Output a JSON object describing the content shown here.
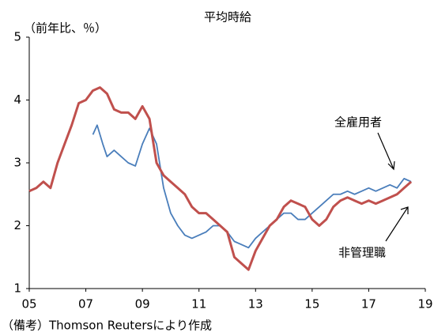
{
  "chart_data": {
    "type": "line",
    "title": "平均時給",
    "ylabel": "（前年比、％）",
    "note": "（備考）Thomson Reutersにより作成",
    "xlim": [
      2005,
      2019
    ],
    "xticks": [
      {
        "value": 2005,
        "label": "05"
      },
      {
        "value": 2007,
        "label": "07"
      },
      {
        "value": 2009,
        "label": "09"
      },
      {
        "value": 2011,
        "label": "11"
      },
      {
        "value": 2013,
        "label": "13"
      },
      {
        "value": 2015,
        "label": "15"
      },
      {
        "value": 2017,
        "label": "17"
      },
      {
        "value": 2019,
        "label": "19"
      }
    ],
    "ylim": [
      1,
      5
    ],
    "yticks": [
      1,
      2,
      3,
      4,
      5
    ],
    "grid": false,
    "series": [
      {
        "name": "全雇用者",
        "color": "#4a7ebb",
        "x": [
          2007.25,
          2007.4,
          2007.6,
          2007.75,
          2008.0,
          2008.25,
          2008.5,
          2008.75,
          2009.0,
          2009.25,
          2009.5,
          2009.75,
          2010.0,
          2010.25,
          2010.5,
          2010.75,
          2011.0,
          2011.25,
          2011.5,
          2011.75,
          2012.0,
          2012.25,
          2012.5,
          2012.75,
          2013.0,
          2013.25,
          2013.5,
          2013.75,
          2014.0,
          2014.25,
          2014.5,
          2014.75,
          2015.0,
          2015.25,
          2015.5,
          2015.75,
          2016.0,
          2016.25,
          2016.5,
          2016.75,
          2017.0,
          2017.25,
          2017.5,
          2017.75,
          2018.0,
          2018.25,
          2018.5
        ],
        "values": [
          3.45,
          3.6,
          3.3,
          3.1,
          3.2,
          3.1,
          3.0,
          2.95,
          3.3,
          3.55,
          3.3,
          2.6,
          2.2,
          2.0,
          1.85,
          1.8,
          1.85,
          1.9,
          2.0,
          2.0,
          1.9,
          1.75,
          1.7,
          1.65,
          1.8,
          1.9,
          2.0,
          2.1,
          2.2,
          2.2,
          2.1,
          2.1,
          2.2,
          2.3,
          2.4,
          2.5,
          2.5,
          2.55,
          2.5,
          2.55,
          2.6,
          2.55,
          2.6,
          2.65,
          2.6,
          2.75,
          2.7
        ]
      },
      {
        "name": "非管理職",
        "color": "#c0504d",
        "x": [
          2005.0,
          2005.25,
          2005.5,
          2005.75,
          2006.0,
          2006.25,
          2006.5,
          2006.75,
          2007.0,
          2007.25,
          2007.5,
          2007.75,
          2008.0,
          2008.25,
          2008.5,
          2008.75,
          2009.0,
          2009.25,
          2009.5,
          2009.75,
          2010.0,
          2010.25,
          2010.5,
          2010.75,
          2011.0,
          2011.25,
          2011.5,
          2011.75,
          2012.0,
          2012.25,
          2012.5,
          2012.75,
          2013.0,
          2013.25,
          2013.5,
          2013.75,
          2014.0,
          2014.25,
          2014.5,
          2014.75,
          2015.0,
          2015.25,
          2015.5,
          2015.75,
          2016.0,
          2016.25,
          2016.5,
          2016.75,
          2017.0,
          2017.25,
          2017.5,
          2017.75,
          2018.0,
          2018.25,
          2018.5
        ],
        "values": [
          2.55,
          2.6,
          2.7,
          2.6,
          3.0,
          3.3,
          3.6,
          3.95,
          4.0,
          4.15,
          4.2,
          4.1,
          3.85,
          3.8,
          3.8,
          3.7,
          3.9,
          3.7,
          3.0,
          2.8,
          2.7,
          2.6,
          2.5,
          2.3,
          2.2,
          2.2,
          2.1,
          2.0,
          1.9,
          1.5,
          1.4,
          1.3,
          1.6,
          1.8,
          2.0,
          2.1,
          2.3,
          2.4,
          2.35,
          2.3,
          2.1,
          2.0,
          2.1,
          2.3,
          2.4,
          2.45,
          2.4,
          2.35,
          2.4,
          2.35,
          2.4,
          2.45,
          2.5,
          2.6,
          2.7
        ]
      }
    ]
  }
}
